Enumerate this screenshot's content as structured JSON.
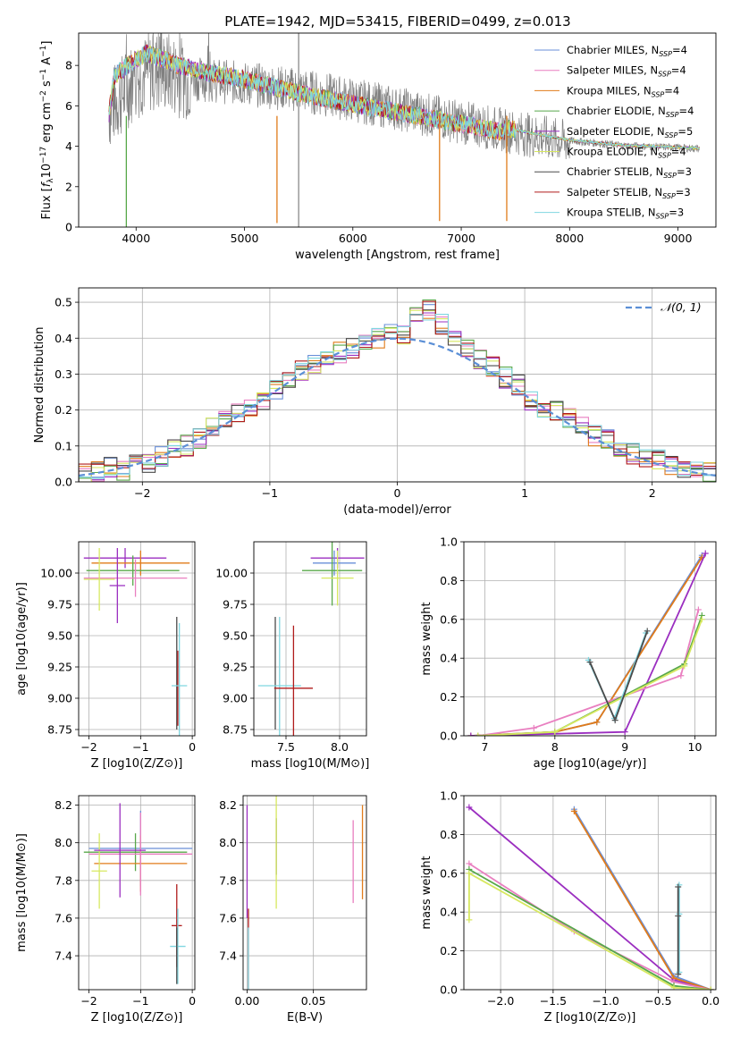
{
  "title": "PLATE=1942, MJD=53415, FIBERID=0499, z=0.013",
  "colors": [
    "#6a8fd8",
    "#e97fc0",
    "#e07b1a",
    "#58a84a",
    "#9b2fc0",
    "#d7e860",
    "#4a4a4a",
    "#b01b1b",
    "#7fd6e0"
  ],
  "chart_data": [
    {
      "id": "spectrum",
      "type": "line",
      "title": "PLATE=1942, MJD=53415, FIBERID=0499, z=0.013",
      "xlabel": "wavelength [Angstrom, rest frame]",
      "ylabel": "Flux [f_λ 10^-17 erg cm^-2 s^-1 A^-1]",
      "ylabel_parts": [
        "Flux [",
        "f",
        "λ",
        "10",
        "−17",
        " erg cm",
        "−2",
        " s",
        "−1",
        " A",
        "−1",
        "]"
      ],
      "xlim": [
        3470,
        9350
      ],
      "ylim": [
        0,
        9.6
      ],
      "xticks": [
        4000,
        5000,
        6000,
        7000,
        8000,
        9000
      ],
      "yticks": [
        0,
        2,
        4,
        6,
        8
      ],
      "legend": [
        {
          "label": "Chabrier MILES, N",
          "sub": "SSP",
          "tail": "=4"
        },
        {
          "label": "Salpeter MILES, N",
          "sub": "SSP",
          "tail": "=4"
        },
        {
          "label": "Kroupa MILES, N",
          "sub": "SSP",
          "tail": "=4"
        },
        {
          "label": "Chabrier ELODIE, N",
          "sub": "SSP",
          "tail": "=4"
        },
        {
          "label": "Salpeter ELODIE, N",
          "sub": "SSP",
          "tail": "=5"
        },
        {
          "label": "Kroupa ELODIE, N",
          "sub": "SSP",
          "tail": "=4"
        },
        {
          "label": "Chabrier STELIB, N",
          "sub": "SSP",
          "tail": "=3"
        },
        {
          "label": "Salpeter STELIB, N",
          "sub": "SSP",
          "tail": "=3"
        },
        {
          "label": "Kroupa STELIB, N",
          "sub": "SSP",
          "tail": "=3"
        }
      ],
      "data_trend": {
        "x": [
          3750,
          4000,
          4200,
          4500,
          5000,
          5500,
          6000,
          6500,
          7000,
          7500,
          8000,
          8500,
          9000,
          9200
        ],
        "y": [
          6.0,
          7.6,
          8.0,
          7.5,
          7.2,
          6.9,
          6.4,
          5.9,
          5.3,
          4.8,
          4.3,
          4.05,
          3.95,
          3.9
        ]
      },
      "model_trend": {
        "x": [
          3750,
          3800,
          3900,
          4000,
          4100,
          4200,
          4400,
          4700,
          5000,
          5300,
          5600,
          5900,
          6300,
          6700,
          7100,
          7400
        ],
        "y": [
          5.6,
          7.5,
          7.9,
          8.3,
          8.6,
          8.4,
          8.0,
          7.6,
          7.3,
          6.9,
          6.5,
          6.2,
          5.8,
          5.4,
          5.0,
          4.7
        ]
      },
      "dips": [
        {
          "x": 3910,
          "y": 0.0
        },
        {
          "x": 5300,
          "y": 0.2
        },
        {
          "x": 6800,
          "y": 0.3
        },
        {
          "x": 7420,
          "y": 0.3
        }
      ],
      "vline": 5500
    },
    {
      "id": "residuals",
      "type": "step",
      "xlabel": "(data-model)/error",
      "ylabel": "Normed distribution",
      "xlim": [
        -2.5,
        2.5
      ],
      "ylim": [
        0,
        0.54
      ],
      "xticks": [
        -2,
        -1,
        0,
        1,
        2
      ],
      "yticks": [
        0.0,
        0.1,
        0.2,
        0.3,
        0.4,
        0.5
      ],
      "legend_label": "𝒩(0, 1)",
      "bin_edges": [
        -2.5,
        -2.4,
        -2.3,
        -2.2,
        -2.1,
        -2.0,
        -1.9,
        -1.8,
        -1.7,
        -1.6,
        -1.5,
        -1.4,
        -1.3,
        -1.2,
        -1.1,
        -1.0,
        -0.9,
        -0.8,
        -0.7,
        -0.6,
        -0.5,
        -0.4,
        -0.3,
        -0.2,
        -0.1,
        0.0,
        0.1,
        0.2,
        0.3,
        0.4,
        0.5,
        0.6,
        0.7,
        0.8,
        0.9,
        1.0,
        1.1,
        1.2,
        1.3,
        1.4,
        1.5,
        1.6,
        1.7,
        1.8,
        1.9,
        2.0,
        2.1,
        2.2,
        2.3,
        2.4,
        2.5
      ],
      "hist_base": [
        0.02,
        0.03,
        0.04,
        0.03,
        0.05,
        0.05,
        0.07,
        0.09,
        0.1,
        0.12,
        0.15,
        0.17,
        0.19,
        0.2,
        0.23,
        0.26,
        0.28,
        0.31,
        0.33,
        0.35,
        0.36,
        0.37,
        0.38,
        0.4,
        0.42,
        0.41,
        0.46,
        0.48,
        0.44,
        0.4,
        0.37,
        0.34,
        0.32,
        0.29,
        0.27,
        0.23,
        0.21,
        0.2,
        0.18,
        0.16,
        0.13,
        0.12,
        0.1,
        0.08,
        0.07,
        0.06,
        0.05,
        0.04,
        0.03,
        0.03
      ]
    },
    {
      "id": "age_vs_Z",
      "type": "errorbar",
      "xlabel": "Z [log10(Z/Z⊙)]",
      "ylabel": "age [log10(age/yr)]",
      "xlim": [
        -2.2,
        0.05
      ],
      "ylim": [
        8.7,
        10.25
      ],
      "xticks": [
        -2,
        -1,
        0
      ],
      "yticks": [
        8.75,
        9.0,
        9.25,
        9.5,
        9.75,
        10.0
      ],
      "points": [
        {
          "x": -1.3,
          "y": 10.12,
          "xerr": 0.8,
          "yerr": 0.08,
          "c": 4
        },
        {
          "x": -1.0,
          "y": 10.08,
          "xerr": 0.95,
          "yerr": 0.1,
          "c": 2
        },
        {
          "x": -1.15,
          "y": 10.02,
          "xerr": 0.9,
          "yerr": 0.12,
          "c": 3
        },
        {
          "x": -1.1,
          "y": 9.96,
          "xerr": 1.0,
          "yerr": 0.15,
          "c": 1
        },
        {
          "x": -1.8,
          "y": 9.95,
          "xerr": 0.3,
          "yerr": 0.25,
          "c": 5
        },
        {
          "x": -1.45,
          "y": 9.9,
          "xerr": 0.15,
          "yerr": 0.3,
          "c": 4
        },
        {
          "x": -0.3,
          "y": 9.2,
          "xerr": 0.0,
          "yerr": 0.45,
          "c": 6
        },
        {
          "x": -0.28,
          "y": 9.08,
          "xerr": 0.0,
          "yerr": 0.3,
          "c": 7
        },
        {
          "x": -0.25,
          "y": 9.1,
          "xerr": 0.15,
          "yerr": 0.5,
          "c": 8
        }
      ]
    },
    {
      "id": "age_vs_mass",
      "type": "errorbar",
      "xlabel": "mass [log10(M/M⊙)]",
      "ylabel": "",
      "xlim": [
        7.2,
        8.25
      ],
      "ylim": [
        8.7,
        10.25
      ],
      "xticks": [
        7.5,
        8.0
      ],
      "yticks": [
        8.75,
        9.0,
        9.25,
        9.5,
        9.75,
        10.0
      ],
      "points": [
        {
          "x": 7.98,
          "y": 10.12,
          "xerr": 0.25,
          "yerr": 0.08,
          "c": 4
        },
        {
          "x": 7.95,
          "y": 10.08,
          "xerr": 0.2,
          "yerr": 0.1,
          "c": 0
        },
        {
          "x": 7.93,
          "y": 10.02,
          "xerr": 0.28,
          "yerr": 0.28,
          "c": 3
        },
        {
          "x": 7.98,
          "y": 9.96,
          "xerr": 0.15,
          "yerr": 0.22,
          "c": 5
        },
        {
          "x": 7.4,
          "y": 9.2,
          "xerr": 0.0,
          "yerr": 0.45,
          "c": 6
        },
        {
          "x": 7.44,
          "y": 9.1,
          "xerr": 0.2,
          "yerr": 0.55,
          "c": 8
        },
        {
          "x": 7.57,
          "y": 9.08,
          "xerr": 0.18,
          "yerr": 0.5,
          "c": 7
        }
      ]
    },
    {
      "id": "weight_vs_age",
      "type": "line",
      "xlabel": "age [log10(age/yr)]",
      "ylabel": "mass weight",
      "xlim": [
        6.7,
        10.3
      ],
      "ylim": [
        0,
        1.0
      ],
      "xticks": [
        7,
        8,
        9,
        10
      ],
      "yticks": [
        0.0,
        0.2,
        0.4,
        0.6,
        0.8,
        1.0
      ],
      "series": [
        {
          "c": 0,
          "x": [
            6.8,
            8.0,
            8.6,
            10.1
          ],
          "y": [
            0.0,
            0.02,
            0.07,
            0.93
          ]
        },
        {
          "c": 2,
          "x": [
            6.8,
            8.0,
            8.6,
            10.1
          ],
          "y": [
            0.0,
            0.02,
            0.07,
            0.92
          ]
        },
        {
          "c": 4,
          "x": [
            6.8,
            8.0,
            9.0,
            10.15
          ],
          "y": [
            0.0,
            0.01,
            0.02,
            0.94
          ]
        },
        {
          "c": 1,
          "x": [
            6.9,
            7.7,
            9.8,
            10.05
          ],
          "y": [
            0.0,
            0.04,
            0.31,
            0.65
          ]
        },
        {
          "c": 3,
          "x": [
            6.9,
            8.0,
            9.85,
            10.1
          ],
          "y": [
            0.0,
            0.02,
            0.37,
            0.62
          ]
        },
        {
          "c": 5,
          "x": [
            6.9,
            8.0,
            9.85,
            10.1
          ],
          "y": [
            0.0,
            0.02,
            0.36,
            0.6
          ]
        },
        {
          "c": 8,
          "x": [
            8.48,
            8.85,
            9.3
          ],
          "y": [
            0.39,
            0.09,
            0.53
          ]
        },
        {
          "c": 6,
          "x": [
            8.5,
            8.86,
            9.32
          ],
          "y": [
            0.38,
            0.08,
            0.54
          ]
        }
      ]
    },
    {
      "id": "mass_vs_Z",
      "type": "errorbar",
      "xlabel": "Z [log10(Z/Z⊙)]",
      "ylabel": "mass [log10(M/M⊙)]",
      "xlim": [
        -2.2,
        0.05
      ],
      "ylim": [
        7.22,
        8.25
      ],
      "xticks": [
        -2,
        -1,
        0
      ],
      "yticks": [
        7.4,
        7.6,
        7.8,
        8.0,
        8.2
      ],
      "points": [
        {
          "x": -1.0,
          "y": 7.97,
          "xerr": 1.0,
          "yerr": 0.2,
          "c": 0
        },
        {
          "x": -1.1,
          "y": 7.95,
          "xerr": 1.0,
          "yerr": 0.1,
          "c": 3
        },
        {
          "x": -1.0,
          "y": 7.89,
          "xerr": 0.9,
          "yerr": 0.15,
          "c": 2
        },
        {
          "x": -1.0,
          "y": 7.94,
          "xerr": 1.0,
          "yerr": 0.22,
          "c": 1
        },
        {
          "x": -1.8,
          "y": 7.85,
          "xerr": 0.15,
          "yerr": 0.2,
          "c": 5
        },
        {
          "x": -1.4,
          "y": 7.96,
          "xerr": 0.5,
          "yerr": 0.25,
          "c": 4
        },
        {
          "x": -0.3,
          "y": 7.56,
          "xerr": 0.1,
          "yerr": 0.22,
          "c": 7
        },
        {
          "x": -0.28,
          "y": 7.45,
          "xerr": 0.15,
          "yerr": 0.2,
          "c": 8
        },
        {
          "x": -0.3,
          "y": 7.4,
          "xerr": 0.0,
          "yerr": 0.15,
          "c": 6
        }
      ]
    },
    {
      "id": "mass_vs_ebv",
      "type": "errorbar",
      "xlabel": "E(B-V)",
      "ylabel": "",
      "xlim": [
        -0.003,
        0.09
      ],
      "ylim": [
        7.22,
        8.25
      ],
      "xticks": [
        0.0,
        0.05
      ],
      "yticks": [
        7.4,
        7.6,
        7.8,
        8.0,
        8.2
      ],
      "points": [
        {
          "x": 0.0,
          "y": 7.9,
          "xerr": 0,
          "yerr": 0.3,
          "c": 4
        },
        {
          "x": 0.001,
          "y": 7.4,
          "xerr": 0,
          "yerr": 0.25,
          "c": 7
        },
        {
          "x": 0.001,
          "y": 7.35,
          "xerr": 0,
          "yerr": 0.2,
          "c": 8
        },
        {
          "x": 0.022,
          "y": 7.98,
          "xerr": 0,
          "yerr": 0.15,
          "c": 6
        },
        {
          "x": 0.022,
          "y": 7.95,
          "xerr": 0,
          "yerr": 0.3,
          "c": 5
        },
        {
          "x": 0.08,
          "y": 7.9,
          "xerr": 0,
          "yerr": 0.22,
          "c": 1
        },
        {
          "x": 0.087,
          "y": 7.95,
          "xerr": 0,
          "yerr": 0.25,
          "c": 2
        }
      ]
    },
    {
      "id": "weight_vs_Z",
      "type": "line",
      "xlabel": "Z [log10(Z/Z⊙)]",
      "ylabel": "mass weight",
      "xlim": [
        -2.35,
        0.05
      ],
      "ylim": [
        0,
        1.0
      ],
      "xticks": [
        -2.0,
        -1.5,
        -1.0,
        -0.5,
        0.0
      ],
      "yticks": [
        0.0,
        0.2,
        0.4,
        0.6,
        0.8,
        1.0
      ],
      "series": [
        {
          "c": 4,
          "x": [
            -2.3,
            -0.35,
            0.0
          ],
          "y": [
            0.94,
            0.05,
            0.0
          ]
        },
        {
          "c": 0,
          "x": [
            -1.3,
            -0.35,
            0.0
          ],
          "y": [
            0.93,
            0.07,
            0.0
          ]
        },
        {
          "c": 2,
          "x": [
            -1.3,
            -0.35,
            0.0
          ],
          "y": [
            0.92,
            0.06,
            0.0
          ]
        },
        {
          "c": 1,
          "x": [
            -2.3,
            -1.3,
            -0.35,
            0.0
          ],
          "y": [
            0.65,
            0.3,
            0.04,
            0.0
          ]
        },
        {
          "c": 3,
          "x": [
            -2.3,
            -0.35,
            0.0
          ],
          "y": [
            0.62,
            0.02,
            0.0
          ]
        },
        {
          "c": 5,
          "x": [
            -2.3,
            -2.3,
            -0.35,
            0.0
          ],
          "y": [
            0.36,
            0.6,
            0.01,
            0.0
          ]
        },
        {
          "c": 8,
          "x": [
            -0.3,
            -0.3,
            -0.3
          ],
          "y": [
            0.54,
            0.39,
            0.09
          ]
        },
        {
          "c": 6,
          "x": [
            -0.31,
            -0.31,
            -0.31
          ],
          "y": [
            0.53,
            0.38,
            0.08
          ]
        }
      ]
    }
  ]
}
